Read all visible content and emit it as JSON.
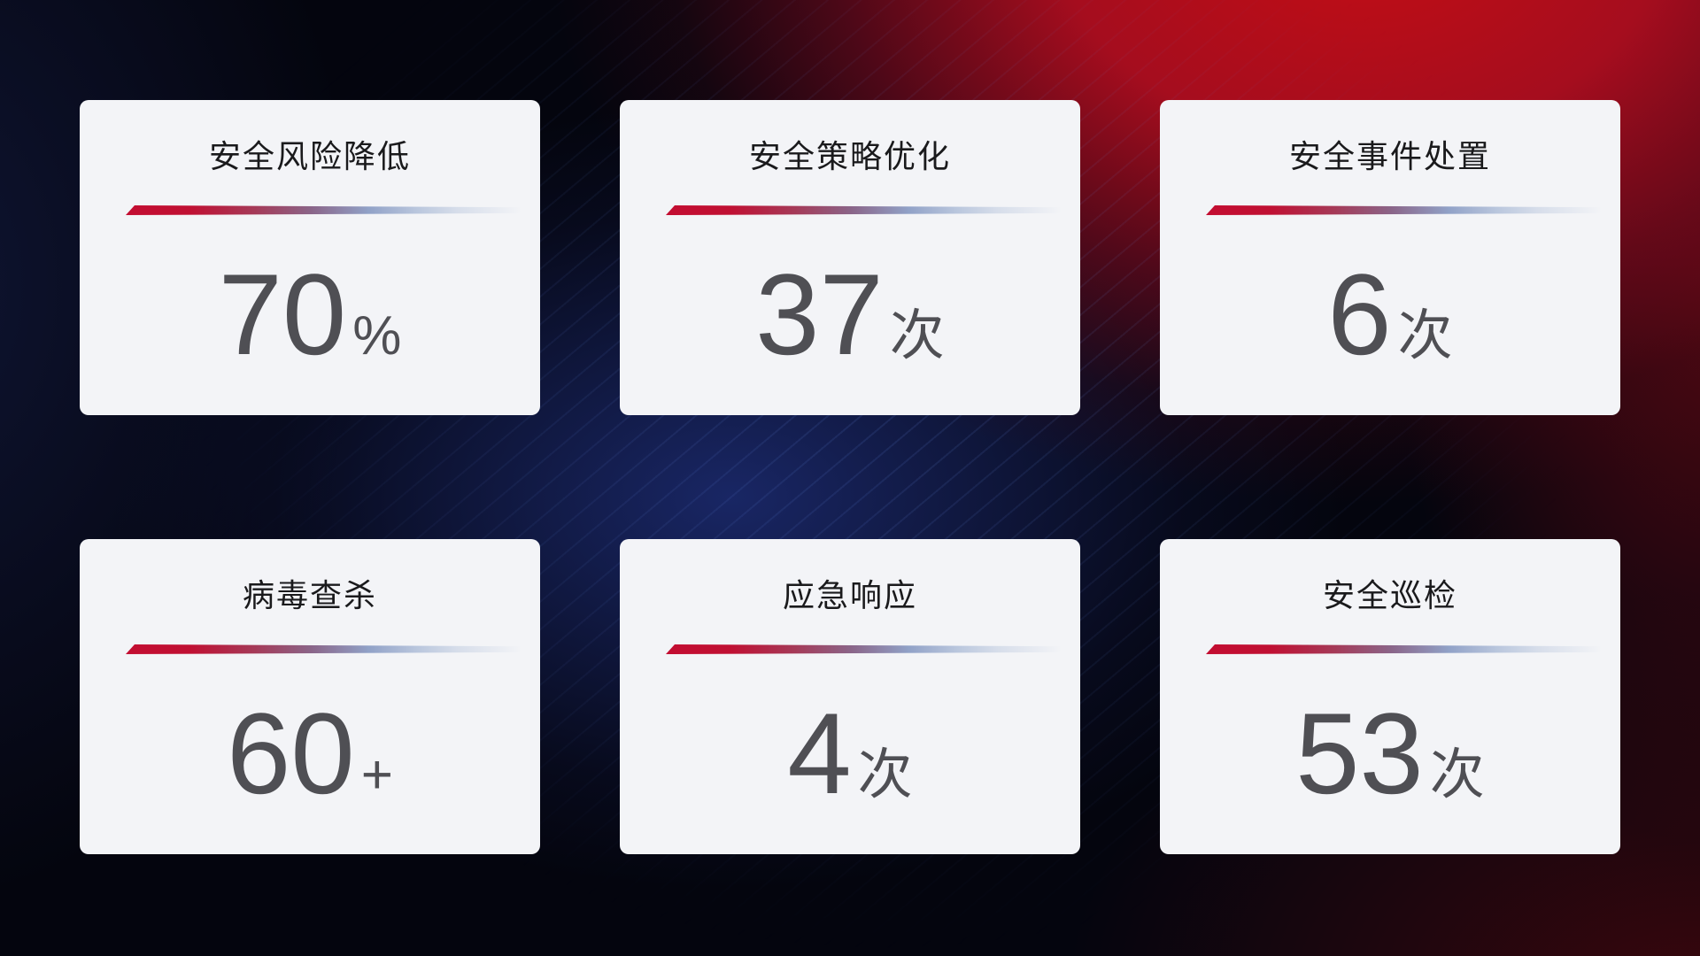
{
  "cards": [
    {
      "title": "安全风险降低",
      "value": "70",
      "unit": "%"
    },
    {
      "title": "安全策略优化",
      "value": "37",
      "unit": "次"
    },
    {
      "title": "安全事件处置",
      "value": "6",
      "unit": "次"
    },
    {
      "title": "病毒查杀",
      "value": "60",
      "unit": "+"
    },
    {
      "title": "应急响应",
      "value": "4",
      "unit": "次"
    },
    {
      "title": "安全巡检",
      "value": "53",
      "unit": "次"
    }
  ],
  "colors": {
    "background_base": "#04050e",
    "background_red_glow": "#c50d14",
    "background_navy_glow": "#1a2869",
    "background_maroon": "#3e070d",
    "card_background": "#f3f4f7",
    "title_text": "#1a1a1c",
    "value_text": "#4f4f54",
    "accent_line_start": "#c30d31",
    "accent_line_end": "#b9c6dd"
  }
}
